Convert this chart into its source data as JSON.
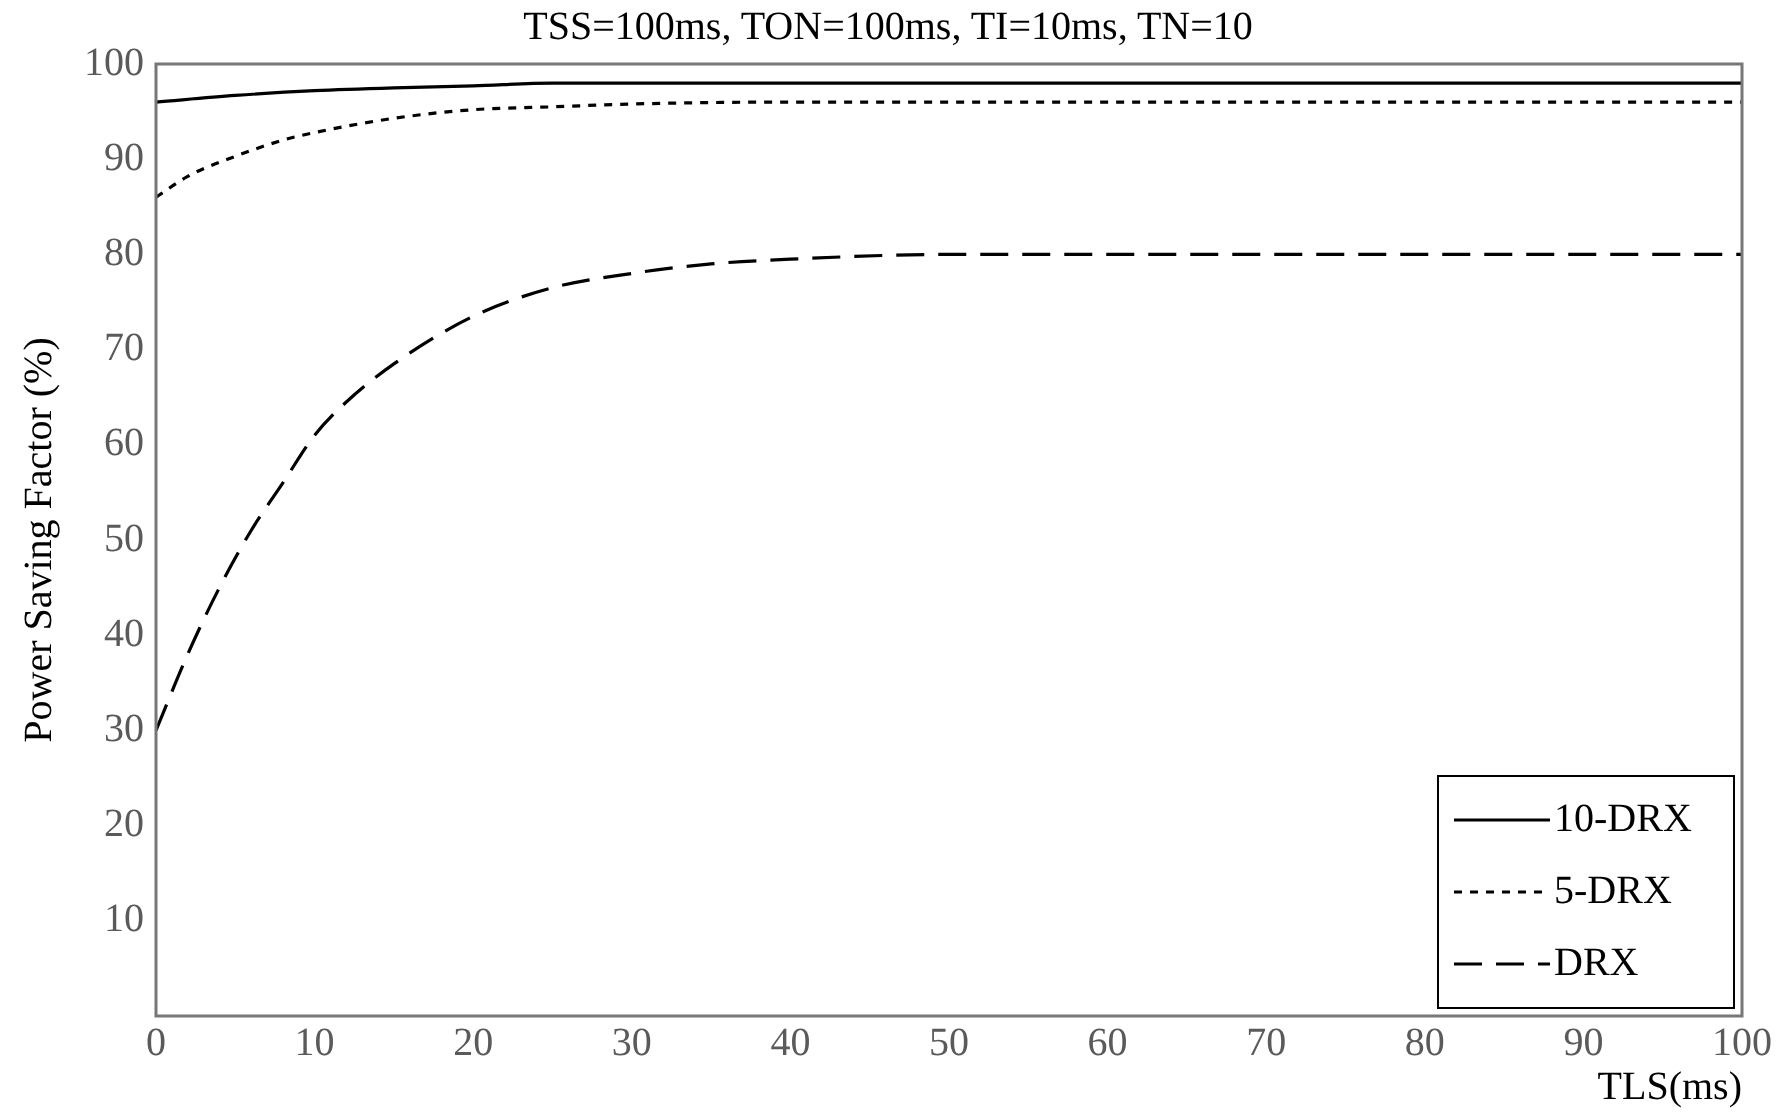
{
  "chart_data": {
    "type": "line",
    "title": "TSS=100ms, TON=100ms, TI=10ms, TN=10",
    "xlabel": "TLS(ms)",
    "ylabel": "Power Saving Factor (%)",
    "xlim": [
      0,
      100
    ],
    "xticks": [
      0,
      10,
      20,
      30,
      40,
      50,
      60,
      70,
      80,
      90,
      100
    ],
    "ylim": [
      0,
      100
    ],
    "yticks": [
      10,
      20,
      30,
      40,
      50,
      60,
      70,
      80,
      90,
      100
    ],
    "grid": false,
    "legend": "bottom right",
    "marker": "none",
    "series": [
      {
        "name": "10-DRX",
        "color": "#000000",
        "line_style": "solid",
        "x": [
          0,
          5,
          10,
          15,
          20,
          25,
          30,
          40,
          50,
          60,
          80,
          100
        ],
        "values": [
          96,
          96.7,
          97.2,
          97.5,
          97.7,
          98,
          98,
          98,
          98,
          98,
          98,
          98
        ]
      },
      {
        "name": "5-DRX",
        "color": "#000000",
        "line_style": "dotted",
        "x": [
          0,
          2,
          5,
          8,
          10,
          15,
          20,
          25,
          30,
          40,
          50,
          60,
          80,
          100
        ],
        "values": [
          86,
          88.2,
          90.3,
          92,
          92.8,
          94.3,
          95.2,
          95.5,
          95.8,
          96,
          96,
          96,
          96,
          96
        ]
      },
      {
        "name": "DRX",
        "color": "#000000",
        "line_style": "dashed",
        "x": [
          0,
          2,
          4,
          6,
          8,
          10,
          12,
          15,
          20,
          25,
          30,
          35,
          40,
          50,
          60,
          80,
          100
        ],
        "values": [
          30,
          38,
          45,
          51,
          56,
          61,
          64.5,
          68.5,
          73.5,
          76.5,
          78,
          79,
          79.5,
          80,
          80,
          80,
          80
        ]
      }
    ]
  }
}
